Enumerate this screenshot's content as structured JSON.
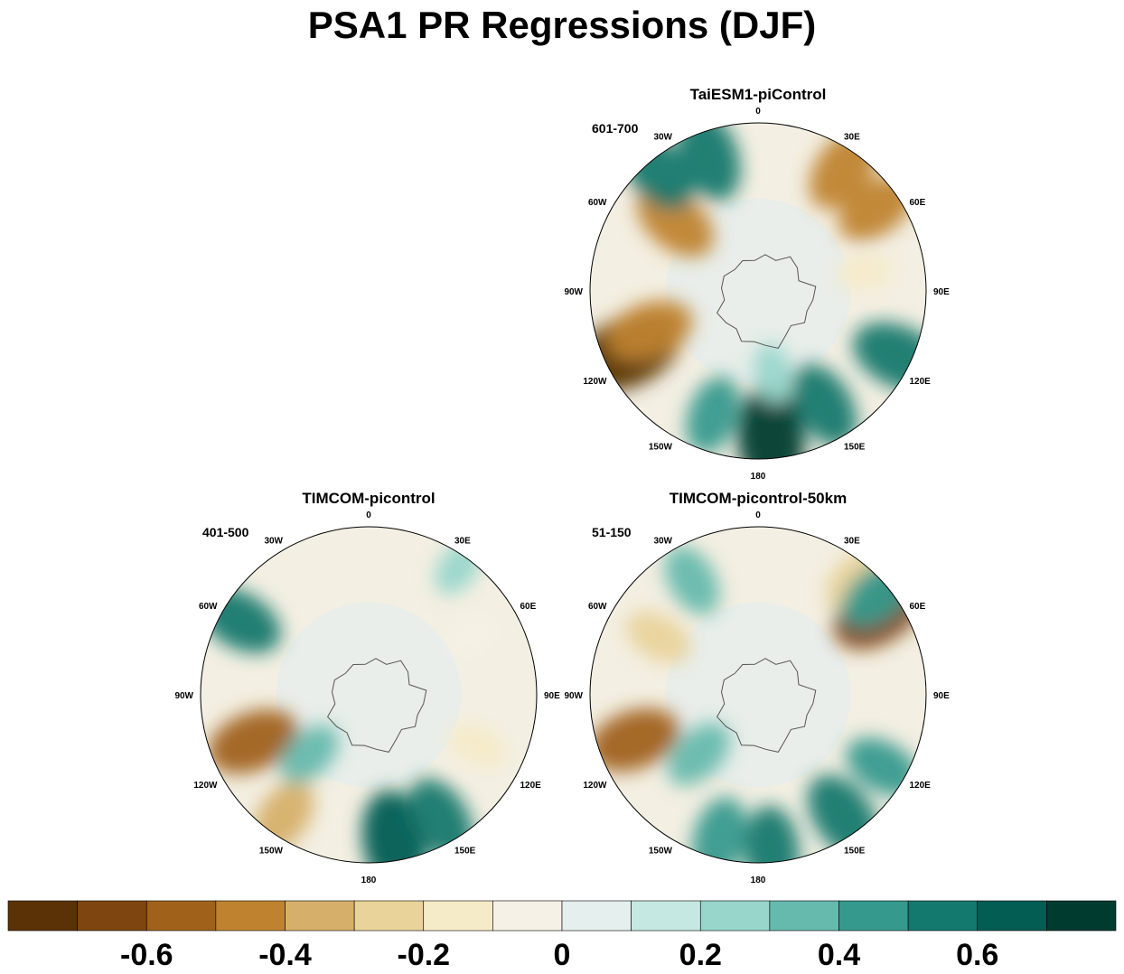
{
  "figure": {
    "title": "PSA1 PR Regressions (DJF)"
  },
  "panels": [
    {
      "name": "TaiESM1-piControl",
      "years": "601-700"
    },
    {
      "name": "TIMCOM-picontrol",
      "years": "401-500"
    },
    {
      "name": "TIMCOM-picontrol-50km",
      "years": "51-150"
    }
  ],
  "longitude_labels": [
    "0",
    "30E",
    "60E",
    "90E",
    "120E",
    "150E",
    "180",
    "150W",
    "120W",
    "90W",
    "60W",
    "30W"
  ],
  "colorbar": {
    "colors": [
      "#5a3206",
      "#7e4510",
      "#a0611a",
      "#bf832f",
      "#d6b06a",
      "#e9d39b",
      "#f6ebc8",
      "#f5f1e6",
      "#e4efee",
      "#c6e8e2",
      "#98d6cb",
      "#66b9ad",
      "#35998d",
      "#13786d",
      "#035d53",
      "#003b2f"
    ],
    "tick_values": [
      -0.6,
      -0.4,
      -0.2,
      0,
      0.2,
      0.4,
      0.6
    ],
    "tick_labels": [
      "-0.6",
      "-0.4",
      "-0.2",
      "0",
      "0.2",
      "0.4",
      "0.6"
    ]
  },
  "chart_data": [
    {
      "type": "heatmap",
      "title": "TaiESM1-piControl",
      "subtitle": "601-700",
      "projection": "south polar stereographic",
      "features": [
        {
          "lon": -115,
          "lat": -30,
          "value": -0.75
        },
        {
          "lon": -110,
          "lat": -42,
          "value": -0.5
        },
        {
          "lon": -50,
          "lat": -45,
          "value": -0.5
        },
        {
          "lon": 35,
          "lat": -28,
          "value": -0.5
        },
        {
          "lon": 55,
          "lat": -30,
          "value": -0.45
        },
        {
          "lon": 80,
          "lat": -45,
          "value": -0.15
        },
        {
          "lon": -20,
          "lat": -30,
          "value": 0.55
        },
        {
          "lon": -40,
          "lat": -25,
          "value": 0.5
        },
        {
          "lon": 175,
          "lat": -28,
          "value": 0.7
        },
        {
          "lon": 150,
          "lat": -35,
          "value": 0.5
        },
        {
          "lon": 115,
          "lat": -25,
          "value": 0.6
        },
        {
          "lon": -160,
          "lat": -35,
          "value": 0.4
        },
        {
          "lon": 170,
          "lat": -55,
          "value": 0.2
        }
      ]
    },
    {
      "type": "heatmap",
      "title": "TIMCOM-picontrol",
      "subtitle": "401-500",
      "projection": "south polar stereographic",
      "features": [
        {
          "lon": -112,
          "lat": -38,
          "value": -0.55
        },
        {
          "lon": -145,
          "lat": -28,
          "value": -0.4
        },
        {
          "lon": 115,
          "lat": -40,
          "value": -0.2
        },
        {
          "lon": 170,
          "lat": -28,
          "value": 0.65
        },
        {
          "lon": 150,
          "lat": -30,
          "value": 0.5
        },
        {
          "lon": -135,
          "lat": -55,
          "value": 0.3
        },
        {
          "lon": -60,
          "lat": -28,
          "value": 0.5
        },
        {
          "lon": 35,
          "lat": -25,
          "value": 0.2
        },
        {
          "lon": 60,
          "lat": -40,
          "value": -0.1
        }
      ]
    },
    {
      "type": "heatmap",
      "title": "TIMCOM-picontrol-50km",
      "subtitle": "51-150",
      "projection": "south polar stereographic",
      "features": [
        {
          "lon": -110,
          "lat": -35,
          "value": -0.55
        },
        {
          "lon": 55,
          "lat": -28,
          "value": -0.65
        },
        {
          "lon": -60,
          "lat": -42,
          "value": -0.3
        },
        {
          "lon": 40,
          "lat": -28,
          "value": -0.3
        },
        {
          "lon": 145,
          "lat": -28,
          "value": 0.55
        },
        {
          "lon": 175,
          "lat": -25,
          "value": 0.5
        },
        {
          "lon": -165,
          "lat": -28,
          "value": 0.45
        },
        {
          "lon": -135,
          "lat": -55,
          "value": 0.35
        },
        {
          "lon": -30,
          "lat": -35,
          "value": 0.35
        },
        {
          "lon": 120,
          "lat": -30,
          "value": 0.4
        },
        {
          "lon": 50,
          "lat": -25,
          "value": 0.45
        }
      ]
    }
  ]
}
